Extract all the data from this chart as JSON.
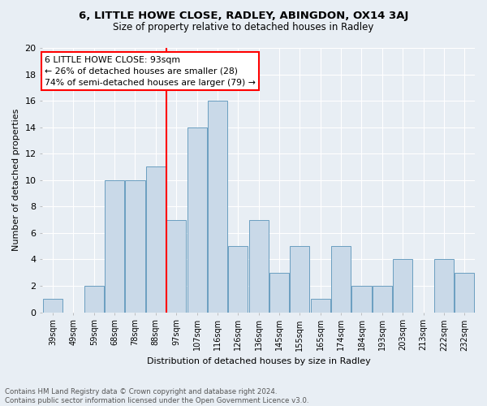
{
  "title": "6, LITTLE HOWE CLOSE, RADLEY, ABINGDON, OX14 3AJ",
  "subtitle": "Size of property relative to detached houses in Radley",
  "xlabel": "Distribution of detached houses by size in Radley",
  "ylabel": "Number of detached properties",
  "bar_labels": [
    "39sqm",
    "49sqm",
    "59sqm",
    "68sqm",
    "78sqm",
    "88sqm",
    "97sqm",
    "107sqm",
    "116sqm",
    "126sqm",
    "136sqm",
    "145sqm",
    "155sqm",
    "165sqm",
    "174sqm",
    "184sqm",
    "193sqm",
    "203sqm",
    "213sqm",
    "222sqm",
    "232sqm"
  ],
  "bar_values": [
    1,
    0,
    2,
    10,
    10,
    11,
    7,
    14,
    16,
    5,
    7,
    3,
    5,
    1,
    5,
    2,
    2,
    4,
    0,
    4,
    3
  ],
  "bar_color": "#c9d9e8",
  "bar_edge_color": "#6a9ec0",
  "background_color": "#e8eef4",
  "plot_bg_color": "#e8eef4",
  "grid_color": "#ffffff",
  "vline_color": "red",
  "annotation_text": "6 LITTLE HOWE CLOSE: 93sqm\n← 26% of detached houses are smaller (28)\n74% of semi-detached houses are larger (79) →",
  "annotation_box_color": "white",
  "annotation_box_edge_color": "red",
  "ylim": [
    0,
    20
  ],
  "yticks": [
    0,
    2,
    4,
    6,
    8,
    10,
    12,
    14,
    16,
    18,
    20
  ],
  "footnote": "Contains HM Land Registry data © Crown copyright and database right 2024.\nContains public sector information licensed under the Open Government Licence v3.0.",
  "figsize": [
    6.0,
    5.0
  ],
  "dpi": 100
}
